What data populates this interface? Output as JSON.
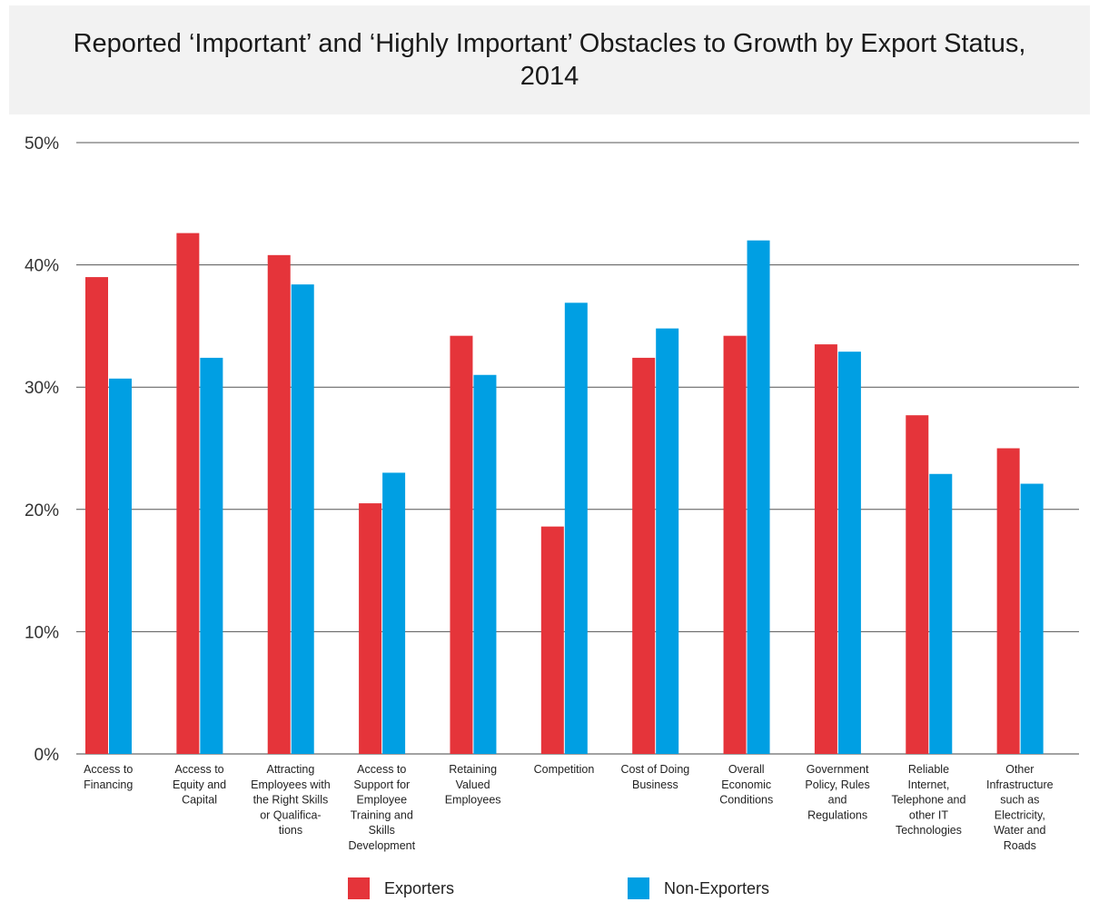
{
  "chart_data": {
    "type": "bar",
    "title": "Reported ‘Important’ and ‘Highly Important’ Obstacles to Growth by Export Status, 2014",
    "xlabel": "",
    "ylabel": "",
    "ylim": [
      0,
      50
    ],
    "yticks": [
      "0%",
      "10%",
      "20%",
      "30%",
      "40%",
      "50%"
    ],
    "ytick_values": [
      0,
      10,
      20,
      30,
      40,
      50
    ],
    "grid": true,
    "legend_position": "bottom",
    "categories": [
      [
        "Access to",
        "Financing"
      ],
      [
        "Access to",
        "Equity and",
        "Capital"
      ],
      [
        "Attracting",
        "Employees with",
        "the Right Skills",
        "or Qualifica-",
        "tions"
      ],
      [
        "Access to",
        "Support for",
        "Employee",
        "Training and",
        "Skills",
        "Development"
      ],
      [
        "Retaining",
        "Valued",
        "Employees"
      ],
      [
        "Competition"
      ],
      [
        "Cost of Doing",
        "Business"
      ],
      [
        "Overall",
        "Economic",
        "Conditions"
      ],
      [
        "Government",
        "Policy, Rules",
        "and",
        "Regulations"
      ],
      [
        "Reliable",
        "Internet,",
        "Telephone and",
        "other IT",
        "Technologies"
      ],
      [
        "Other",
        "Infrastructure",
        "such as",
        "Electricity,",
        "Water and",
        "Roads"
      ]
    ],
    "series": [
      {
        "name": "Exporters",
        "color": "#e5343a",
        "values": [
          39.0,
          42.6,
          40.8,
          20.5,
          34.2,
          18.6,
          32.4,
          34.2,
          33.5,
          27.7,
          25.0
        ]
      },
      {
        "name": "Non-Exporters",
        "color": "#009fe3",
        "values": [
          30.7,
          32.4,
          38.4,
          23.0,
          31.0,
          36.9,
          34.8,
          42.0,
          32.9,
          22.9,
          22.1
        ]
      }
    ]
  },
  "legend": {
    "exporters_label": "Exporters",
    "non_exporters_label": "Non-Exporters"
  }
}
